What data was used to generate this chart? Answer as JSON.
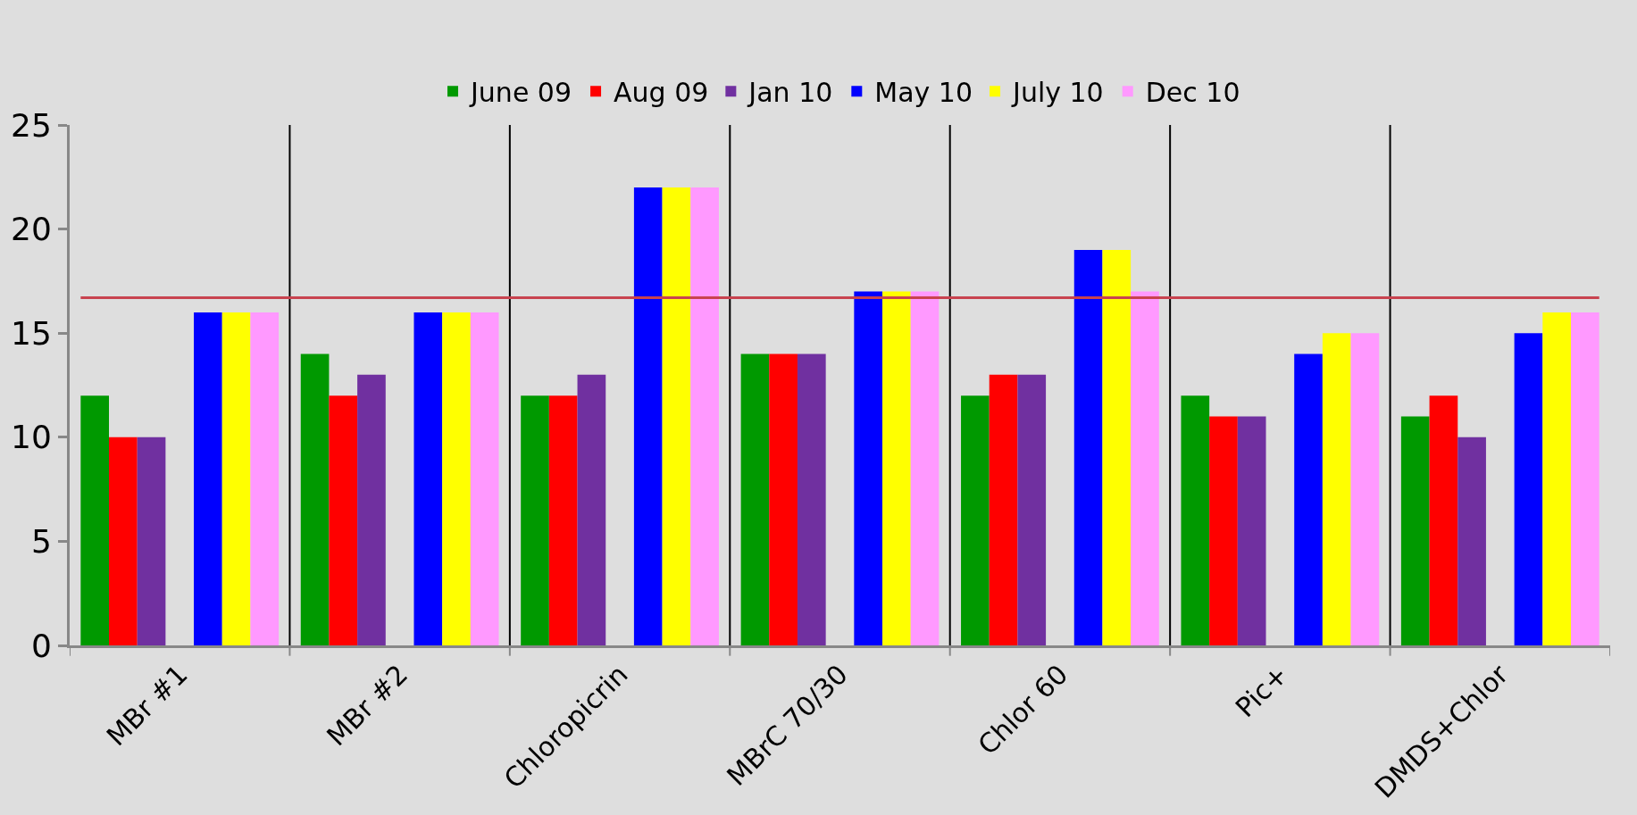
{
  "chart_data": {
    "type": "bar",
    "categories": [
      "MBr #1",
      "MBr #2",
      "Chloropicrin",
      "MBrC 70/30",
      "Chlor 60",
      "Pic+",
      "DMDS+Chlor"
    ],
    "series": [
      {
        "name": "June 09",
        "color": "#009900",
        "values": [
          12,
          14,
          12,
          14,
          12,
          12,
          11
        ]
      },
      {
        "name": "Aug 09",
        "color": "#ff0000",
        "values": [
          10,
          12,
          12,
          14,
          13,
          11,
          12
        ]
      },
      {
        "name": "Jan 10",
        "color": "#7030a0",
        "values": [
          10,
          13,
          13,
          14,
          13,
          11,
          10
        ]
      },
      {
        "color": "#dddddd",
        "values": [
          null,
          null,
          null,
          null,
          null,
          null,
          null
        ]
      },
      {
        "name": "May 10",
        "color": "#0000ff",
        "values": [
          16,
          16,
          22,
          17,
          19,
          14,
          15
        ]
      },
      {
        "name": "July 10",
        "color": "#ffff00",
        "values": [
          16,
          16,
          22,
          17,
          19,
          15,
          16
        ]
      },
      {
        "name": "Dec 10",
        "color": "#ff99ff",
        "values": [
          16,
          16,
          22,
          17,
          17,
          15,
          16
        ]
      }
    ],
    "ylim": [
      0,
      25
    ],
    "yticks": [
      0,
      5,
      10,
      15,
      20,
      25
    ],
    "grid": "x",
    "legend": "top",
    "ref_lines": [
      {
        "axis": "y",
        "value": 16.7,
        "color": "#c8434f"
      }
    ]
  }
}
